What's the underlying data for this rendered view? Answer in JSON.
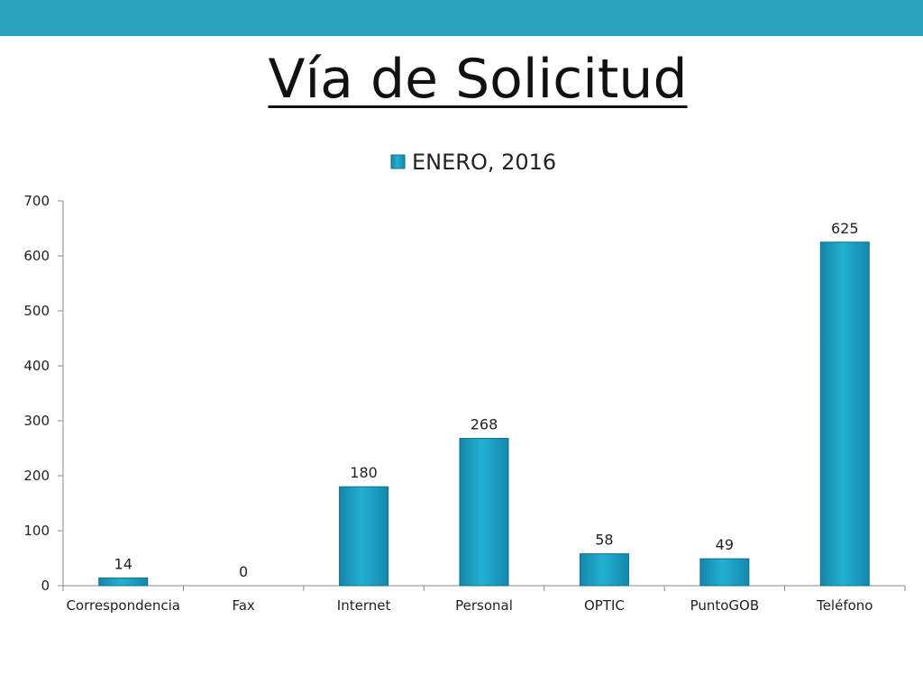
{
  "slide": {
    "title": "Vía de Solicitud",
    "accent_color": "#2aa1be"
  },
  "chart_data": {
    "type": "bar",
    "title": "",
    "xlabel": "",
    "ylabel": "",
    "categories": [
      "Correspondencia",
      "Fax",
      "Internet",
      "Personal",
      "OPTIC",
      "PuntoGOB",
      "Teléfono"
    ],
    "series": [
      {
        "name": "ENERO, 2016",
        "values": [
          14,
          0,
          180,
          268,
          58,
          49,
          625
        ],
        "color": "#1ea3c6"
      }
    ],
    "ylim": [
      0,
      700
    ],
    "yticks": [
      0,
      100,
      200,
      300,
      400,
      500,
      600,
      700
    ],
    "data_labels": [
      "14",
      "0",
      "180",
      "268",
      "58",
      "49",
      "625"
    ],
    "legend_position": "top",
    "grid": false
  }
}
